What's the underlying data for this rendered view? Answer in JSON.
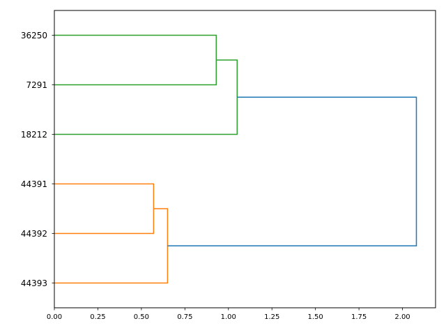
{
  "chart_data": {
    "type": "dendrogram",
    "orientation": "left",
    "xlim": [
      0,
      2.19
    ],
    "ylim": [
      0,
      60
    ],
    "xticks": [
      0.0,
      0.25,
      0.5,
      0.75,
      1.0,
      1.25,
      1.5,
      1.75,
      2.0
    ],
    "xtick_labels": [
      "0.00",
      "0.25",
      "0.50",
      "0.75",
      "1.00",
      "1.25",
      "1.50",
      "1.75",
      "2.00"
    ],
    "leaves_bottom_to_top": [
      "44393",
      "44392",
      "44391",
      "18212",
      "7291",
      "36250"
    ],
    "leaf_positions": [
      5,
      15,
      25,
      35,
      45,
      55
    ],
    "links": [
      {
        "icoord": [
          55,
          55,
          45,
          45
        ],
        "dcoord": [
          0,
          0.93,
          0.93,
          0
        ],
        "color": "#2ca02c"
      },
      {
        "icoord": [
          50,
          50,
          35,
          35
        ],
        "dcoord": [
          0.93,
          1.05,
          1.05,
          0
        ],
        "color": "#2ca02c"
      },
      {
        "icoord": [
          25,
          25,
          15,
          15
        ],
        "dcoord": [
          0,
          0.57,
          0.57,
          0
        ],
        "color": "#ff7f0e"
      },
      {
        "icoord": [
          20,
          20,
          5,
          5
        ],
        "dcoord": [
          0.57,
          0.65,
          0.65,
          0
        ],
        "color": "#ff7f0e"
      },
      {
        "icoord": [
          42.5,
          42.5,
          12.5,
          12.5
        ],
        "dcoord": [
          1.05,
          2.08,
          2.08,
          0.65
        ],
        "color": "#1f77b4"
      }
    ],
    "grid": false
  }
}
